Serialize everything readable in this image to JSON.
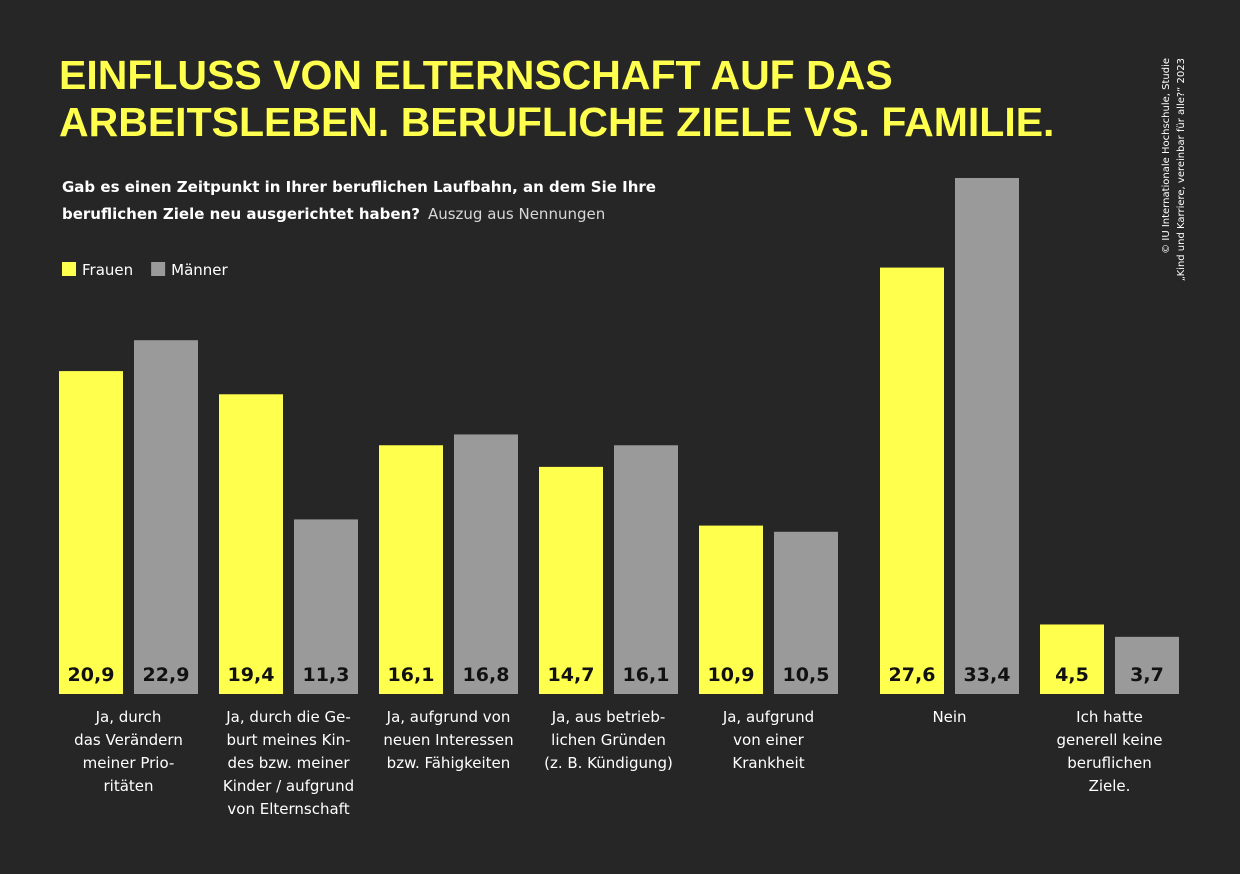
{
  "chart_data": {
    "type": "bar",
    "title": [
      "EINFLUSS VON ELTERNSCHAFT AUF DAS",
      "ARBEITSLEBEN. BERUFLICHE ZIELE VS. FAMILIE."
    ],
    "subtitle": {
      "question": [
        "Gab es einen Zeitpunkt in Ihrer beruflichen Laufbahn, an dem Sie Ihre",
        "beruflichen Ziele neu ausgerichtet haben?"
      ],
      "note": "Auszug aus Nennungen"
    },
    "source": [
      "© IU Internationale Hochschule, Studie",
      "„Kind und Karriere, vereinbar für alle?“ 2023"
    ],
    "categories": [
      [
        "Ja, durch",
        "das Verändern",
        "meiner Prio-",
        "ritäten"
      ],
      [
        "Ja, durch die Ge-",
        "burt meines Kin-",
        "des bzw. meiner",
        "Kinder / aufgrund",
        "von Elternschaft"
      ],
      [
        "Ja, aufgrund von",
        "neuen Interessen",
        "bzw. Fähigkeiten"
      ],
      [
        "Ja, aus betrieb-",
        "lichen Gründen",
        "(z. B. Kündigung)"
      ],
      [
        "Ja, aufgrund",
        "von einer",
        "Krankheit"
      ],
      [
        "Nein"
      ],
      [
        "Ich hatte",
        "generell keine",
        "beruflichen",
        "Ziele."
      ]
    ],
    "series": [
      {
        "name": "Frauen",
        "color": "#ffff4d",
        "values": [
          20.9,
          19.4,
          16.1,
          14.7,
          10.9,
          27.6,
          4.5
        ],
        "value_labels": [
          "20,9",
          "19,4",
          "16,1",
          "14,7",
          "10,9",
          "27,6",
          "4,5"
        ]
      },
      {
        "name": "Männer",
        "color": "#9a9a9a",
        "values": [
          22.9,
          11.3,
          16.8,
          16.1,
          10.5,
          33.4,
          3.7
        ],
        "value_labels": [
          "22,9",
          "11,3",
          "16,8",
          "16,1",
          "10,5",
          "33,4",
          "3,7"
        ]
      }
    ],
    "ylim": [
      0,
      40
    ]
  }
}
